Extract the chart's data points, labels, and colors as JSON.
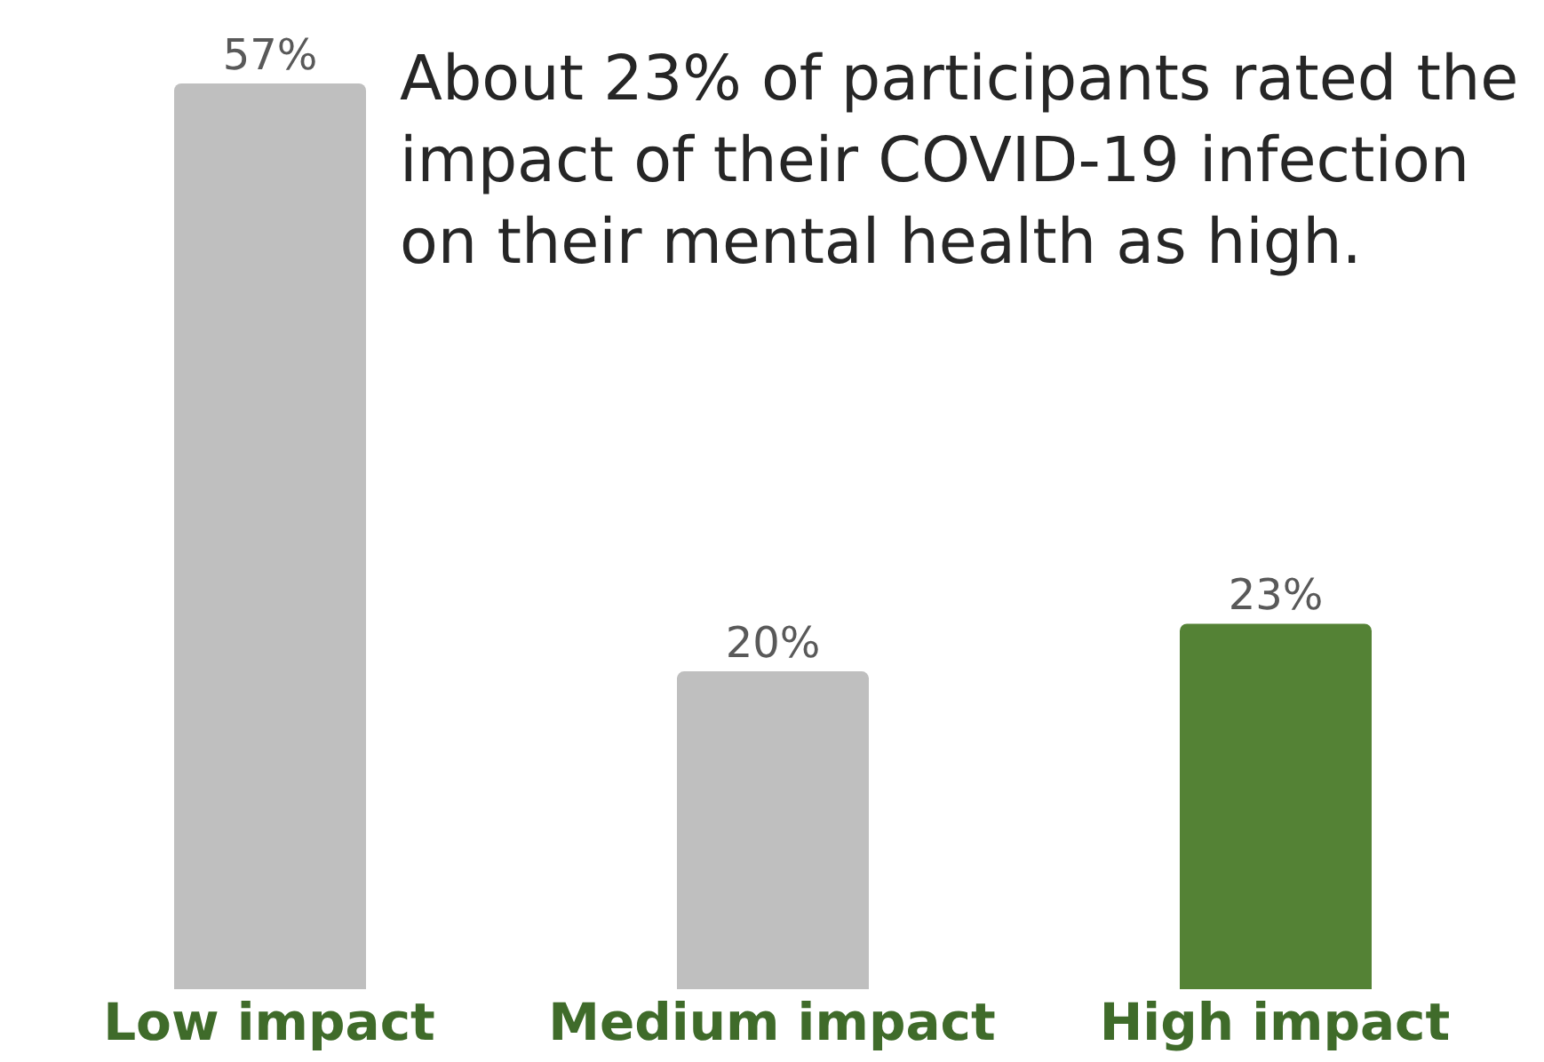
{
  "chart_data": {
    "type": "bar",
    "categories": [
      "Low impact",
      "Medium impact",
      "High impact"
    ],
    "values": [
      57,
      20,
      23
    ],
    "colors": [
      "#bfbfbf",
      "#bfbfbf",
      "#548235"
    ],
    "value_labels": [
      "57%",
      "20%",
      "23%"
    ],
    "annotations": [
      "About 23% of participants rated the impact of their COVID-19 infection on their mental health as high."
    ],
    "grid": false,
    "legend": false
  }
}
